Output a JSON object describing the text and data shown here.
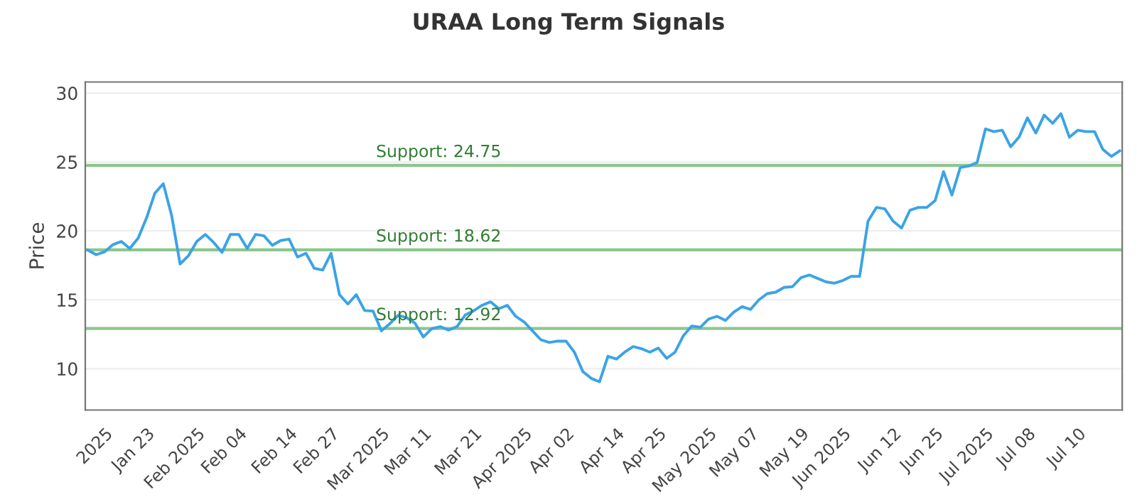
{
  "chart_data": {
    "type": "line",
    "title": "URAA Long Term Signals",
    "ylabel": "Price",
    "categories": [
      null,
      null,
      "2025",
      null,
      null,
      null,
      null,
      "Jan 23",
      null,
      null,
      null,
      null,
      null,
      "Feb 2025",
      null,
      null,
      null,
      null,
      "Feb 04",
      null,
      null,
      null,
      null,
      null,
      "Feb 14",
      null,
      null,
      null,
      null,
      "Feb 27",
      null,
      null,
      null,
      null,
      null,
      "Mar 2025",
      null,
      null,
      null,
      null,
      "Mar 11",
      null,
      null,
      null,
      null,
      null,
      "Mar 21",
      null,
      null,
      null,
      null,
      null,
      "Apr 2025",
      null,
      null,
      null,
      null,
      "Apr 02",
      null,
      null,
      null,
      null,
      null,
      "Apr 14",
      null,
      null,
      null,
      null,
      "Apr 25",
      null,
      null,
      null,
      null,
      null,
      "May 2025",
      null,
      null,
      null,
      null,
      "May 07",
      null,
      null,
      null,
      null,
      null,
      "May 19",
      null,
      null,
      null,
      null,
      "Jun 2025",
      null,
      null,
      null,
      null,
      null,
      "Jun 12",
      null,
      null,
      null,
      null,
      "Jun 25",
      null,
      null,
      null,
      null,
      null,
      "Jul 2025",
      null,
      null,
      null,
      null,
      "Jul 08",
      null,
      null,
      null,
      null,
      null,
      "Jul 10",
      null,
      null,
      null,
      null,
      null
    ],
    "series": [
      {
        "color": "#3ba3e6",
        "values": [
          18.61,
          18.27,
          18.48,
          19.0,
          19.23,
          18.72,
          19.47,
          20.93,
          22.74,
          23.42,
          21.1,
          17.59,
          18.2,
          19.23,
          19.74,
          19.16,
          18.44,
          19.74,
          19.74,
          18.72,
          19.74,
          19.64,
          18.95,
          19.3,
          19.4,
          18.1,
          18.37,
          17.28,
          17.15,
          18.37,
          15.37,
          14.69,
          15.37,
          14.22,
          14.18,
          12.75,
          13.26,
          13.87,
          13.7,
          13.3,
          12.3,
          12.9,
          13.05,
          12.8,
          13.05,
          13.9,
          14.2,
          14.6,
          14.85,
          14.35,
          14.6,
          13.8,
          13.4,
          12.75,
          12.1,
          11.9,
          12.0,
          12.0,
          11.2,
          9.8,
          9.3,
          9.05,
          10.9,
          10.7,
          11.2,
          11.6,
          11.45,
          11.2,
          11.5,
          10.75,
          11.2,
          12.4,
          13.1,
          13.0,
          13.6,
          13.8,
          13.5,
          14.1,
          14.5,
          14.3,
          15.0,
          15.45,
          15.55,
          15.9,
          15.95,
          16.6,
          16.8,
          16.55,
          16.3,
          16.2,
          16.4,
          16.7,
          16.7,
          20.7,
          21.7,
          21.6,
          20.7,
          20.2,
          21.5,
          21.7,
          21.7,
          22.2,
          24.3,
          22.6,
          24.6,
          24.7,
          24.95,
          27.4,
          27.2,
          27.3,
          26.1,
          26.8,
          28.2,
          27.1,
          28.4,
          27.8,
          28.5,
          26.8,
          27.3,
          27.2,
          27.2,
          25.9,
          25.4,
          25.8
        ]
      }
    ],
    "ylim": [
      7,
      30.8
    ],
    "yticks": [
      10,
      15,
      20,
      25,
      30
    ],
    "grid": "y",
    "marker": "none",
    "line_style": "solid",
    "ref_lines": [
      {
        "axis": "y",
        "value": 24.75,
        "label": "Support: 24.75",
        "color": "#8cc78c"
      },
      {
        "axis": "y",
        "value": 18.62,
        "label": "Support: 18.62",
        "color": "#8cc78c"
      },
      {
        "axis": "y",
        "value": 12.92,
        "label": "Support: 12.92",
        "color": "#8cc78c"
      }
    ]
  }
}
